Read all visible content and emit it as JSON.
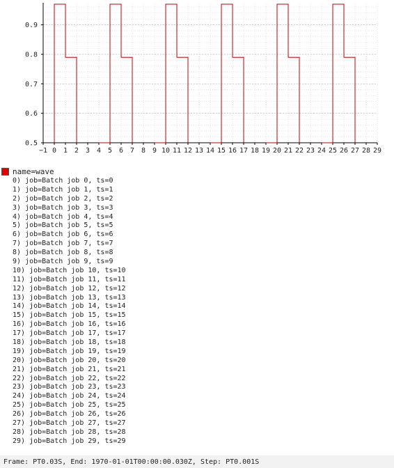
{
  "chart_data": {
    "type": "line",
    "step": true,
    "series": [
      {
        "name": "name=wave",
        "color": "#c00000",
        "x": [
          0,
          1,
          2,
          3,
          4,
          5,
          6,
          7,
          8,
          9,
          10,
          11,
          12,
          13,
          14,
          15,
          16,
          17,
          18,
          19,
          20,
          21,
          22,
          23,
          24,
          25,
          26,
          27,
          28,
          29
        ],
        "values": [
          0.97,
          0.79,
          null,
          null,
          0.5,
          0.97,
          0.79,
          null,
          null,
          0.5,
          0.97,
          0.79,
          null,
          null,
          0.5,
          0.97,
          0.79,
          null,
          null,
          0.5,
          0.97,
          0.79,
          null,
          null,
          0.5,
          0.97,
          0.79,
          null,
          null,
          null
        ]
      }
    ],
    "x_ticks": [
      -1,
      0,
      1,
      2,
      3,
      4,
      5,
      6,
      7,
      8,
      9,
      10,
      11,
      12,
      13,
      14,
      15,
      16,
      17,
      18,
      19,
      20,
      21,
      22,
      23,
      24,
      25,
      26,
      27,
      28,
      29
    ],
    "y_ticks": [
      "0.5",
      "0.6",
      "0.7",
      "0.8",
      "0.9"
    ],
    "xlim": [
      -1,
      29
    ],
    "ylim": [
      0.5,
      0.97
    ],
    "grid": true,
    "legend_position": "below"
  },
  "legend": {
    "series_label": "name=wave",
    "color": "#e00000"
  },
  "rows": [
    "0) job=Batch job 0, ts=0",
    "1) job=Batch job 1, ts=1",
    "2) job=Batch job 2, ts=2",
    "3) job=Batch job 3, ts=3",
    "4) job=Batch job 4, ts=4",
    "5) job=Batch job 5, ts=5",
    "6) job=Batch job 6, ts=6",
    "7) job=Batch job 7, ts=7",
    "8) job=Batch job 8, ts=8",
    "9) job=Batch job 9, ts=9",
    "10) job=Batch job 10, ts=10",
    "11) job=Batch job 11, ts=11",
    "12) job=Batch job 12, ts=12",
    "13) job=Batch job 13, ts=13",
    "14) job=Batch job 14, ts=14",
    "15) job=Batch job 15, ts=15",
    "16) job=Batch job 16, ts=16",
    "17) job=Batch job 17, ts=17",
    "18) job=Batch job 18, ts=18",
    "19) job=Batch job 19, ts=19",
    "20) job=Batch job 20, ts=20",
    "21) job=Batch job 21, ts=21",
    "22) job=Batch job 22, ts=22",
    "23) job=Batch job 23, ts=23",
    "24) job=Batch job 24, ts=24",
    "25) job=Batch job 25, ts=25",
    "26) job=Batch job 26, ts=26",
    "27) job=Batch job 27, ts=27",
    "28) job=Batch job 28, ts=28",
    "29) job=Batch job 29, ts=29"
  ],
  "footer": {
    "text": "Frame: PT0.03S, End: 1970-01-01T00:00:00.030Z, Step: PT0.001S"
  }
}
